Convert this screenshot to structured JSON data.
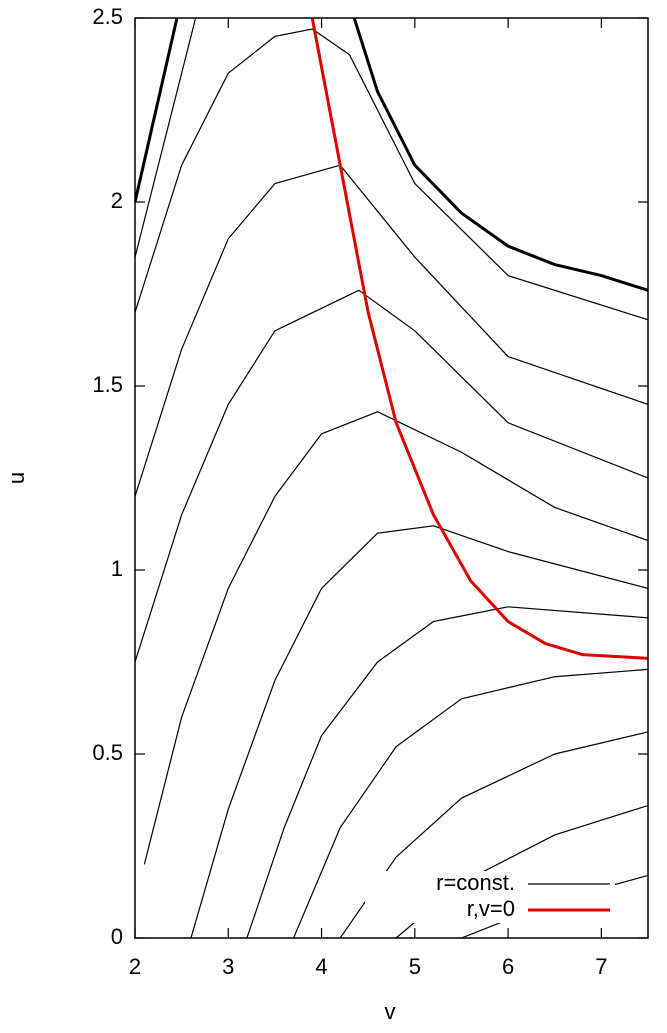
{
  "chart_data": {
    "type": "line",
    "x_label": "v",
    "y_label": "u",
    "xlim": [
      2,
      7.5
    ],
    "ylim": [
      0,
      2.5
    ],
    "xticks": [
      2,
      3,
      4,
      5,
      6,
      7
    ],
    "yticks": [
      0,
      0.5,
      1,
      1.5,
      2,
      2.5
    ],
    "legend": "bottom-right",
    "series": [
      {
        "name": "r=const.",
        "color": "#000000",
        "line_width": 1.2,
        "lines": [
          {
            "line_width": 3,
            "x": [
              2,
              2.45
            ],
            "y": [
              2.0,
              2.5
            ]
          },
          {
            "line_width": 3,
            "x": [
              4.35,
              4.6,
              5,
              5.5,
              6,
              6.5,
              7,
              7.5
            ],
            "y": [
              2.5,
              2.3,
              2.1,
              1.97,
              1.88,
              1.83,
              1.8,
              1.76
            ]
          },
          {
            "x": [
              2,
              2.35,
              2.65
            ],
            "y": [
              1.85,
              2.2,
              2.5
            ]
          },
          {
            "x": [
              2,
              2.5,
              3,
              3.5,
              3.9,
              4.3,
              5,
              6,
              7.5
            ],
            "y": [
              1.7,
              2.1,
              2.35,
              2.45,
              2.47,
              2.4,
              2.05,
              1.8,
              1.68
            ]
          },
          {
            "x": [
              2,
              2.5,
              3,
              3.5,
              4.2,
              5,
              6,
              7.5
            ],
            "y": [
              1.2,
              1.6,
              1.9,
              2.05,
              2.1,
              1.85,
              1.58,
              1.45
            ]
          },
          {
            "x": [
              2,
              2.5,
              3,
              3.5,
              4.4,
              5,
              6,
              7.5
            ],
            "y": [
              0.75,
              1.15,
              1.45,
              1.65,
              1.76,
              1.65,
              1.4,
              1.25
            ]
          },
          {
            "x": [
              2.1,
              2.5,
              3,
              3.5,
              4,
              4.6,
              5.5,
              6.5,
              7.5
            ],
            "y": [
              0.2,
              0.6,
              0.95,
              1.2,
              1.37,
              1.43,
              1.32,
              1.17,
              1.08
            ]
          },
          {
            "x": [
              2.6,
              3,
              3.5,
              4,
              4.6,
              5.2,
              6,
              7.5
            ],
            "y": [
              0,
              0.35,
              0.7,
              0.95,
              1.1,
              1.12,
              1.05,
              0.95
            ]
          },
          {
            "x": [
              3.2,
              3.6,
              4,
              4.6,
              5.2,
              6,
              7.5
            ],
            "y": [
              0,
              0.3,
              0.55,
              0.75,
              0.86,
              0.9,
              0.87
            ]
          },
          {
            "x": [
              3.7,
              4.2,
              4.8,
              5.5,
              6.5,
              7.5
            ],
            "y": [
              0,
              0.3,
              0.52,
              0.65,
              0.71,
              0.73
            ]
          },
          {
            "x": [
              4.2,
              4.8,
              5.5,
              6.5,
              7.5
            ],
            "y": [
              0,
              0.22,
              0.38,
              0.5,
              0.56
            ]
          },
          {
            "x": [
              4.8,
              5.5,
              6.5,
              7.5
            ],
            "y": [
              0,
              0.15,
              0.28,
              0.36
            ]
          },
          {
            "x": [
              5.5,
              6.5,
              7.5
            ],
            "y": [
              0,
              0.1,
              0.17
            ]
          }
        ]
      },
      {
        "name": "r,v=0",
        "color": "#e00000",
        "line_width": 3,
        "x": [
          3.9,
          4.2,
          4.5,
          4.8,
          5.2,
          5.6,
          6.0,
          6.4,
          6.8,
          7.5
        ],
        "y": [
          2.5,
          2.1,
          1.7,
          1.4,
          1.15,
          0.97,
          0.86,
          0.8,
          0.77,
          0.76
        ]
      }
    ]
  }
}
